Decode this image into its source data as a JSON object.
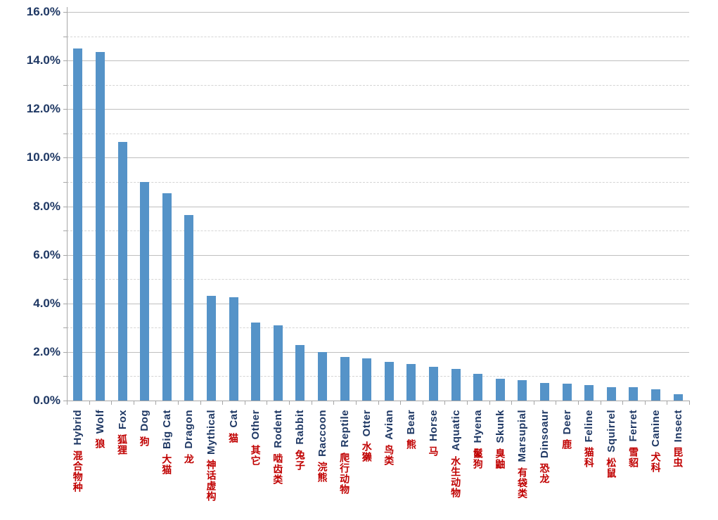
{
  "chart_data": {
    "type": "bar",
    "title": "",
    "xlabel": "",
    "ylabel": "",
    "ylim": [
      0,
      16
    ],
    "ytick_major_step": 2,
    "ytick_minor_step": 1,
    "ytick_labels": [
      "0.0%",
      "2.0%",
      "4.0%",
      "6.0%",
      "8.0%",
      "10.0%",
      "12.0%",
      "14.0%",
      "16.0%"
    ],
    "grid": true,
    "legend_position": "none",
    "categories": [
      {
        "en": "Hybrid",
        "zh": "混合物种"
      },
      {
        "en": "Wolf",
        "zh": "狼"
      },
      {
        "en": "Fox",
        "zh": "狐狸"
      },
      {
        "en": "Dog",
        "zh": "狗"
      },
      {
        "en": "Big Cat",
        "zh": "大猫"
      },
      {
        "en": "Dragon",
        "zh": "龙"
      },
      {
        "en": "Mythical",
        "zh": "神话虚构"
      },
      {
        "en": "Cat",
        "zh": "猫"
      },
      {
        "en": "Other",
        "zh": "其它"
      },
      {
        "en": "Rodent",
        "zh": "啮齿类"
      },
      {
        "en": "Rabbit",
        "zh": "兔子"
      },
      {
        "en": "Raccoon",
        "zh": "浣熊"
      },
      {
        "en": "Reptile",
        "zh": "爬行动物"
      },
      {
        "en": "Otter",
        "zh": "水獭"
      },
      {
        "en": "Avian",
        "zh": "鸟类"
      },
      {
        "en": "Bear",
        "zh": "熊"
      },
      {
        "en": "Horse",
        "zh": "马"
      },
      {
        "en": "Aquatic",
        "zh": "水生动物"
      },
      {
        "en": "Hyena",
        "zh": "鬣狗"
      },
      {
        "en": "Skunk",
        "zh": "臭鼬"
      },
      {
        "en": "Marsupial",
        "zh": "有袋类"
      },
      {
        "en": "Dinsoaur",
        "zh": "恐龙"
      },
      {
        "en": "Deer",
        "zh": "鹿"
      },
      {
        "en": "Feline",
        "zh": "猫科"
      },
      {
        "en": "Squirrel",
        "zh": "松鼠"
      },
      {
        "en": "Ferret",
        "zh": "雪貂"
      },
      {
        "en": "Canine",
        "zh": "犬科"
      },
      {
        "en": "Insect",
        "zh": "昆虫"
      }
    ],
    "values": [
      14.5,
      14.35,
      10.65,
      9.0,
      8.55,
      7.65,
      4.3,
      4.25,
      3.2,
      3.1,
      2.3,
      2.0,
      1.8,
      1.75,
      1.6,
      1.5,
      1.4,
      1.3,
      1.1,
      0.9,
      0.85,
      0.72,
      0.7,
      0.65,
      0.55,
      0.55,
      0.45,
      0.25
    ],
    "colors": {
      "bar": "#5593c8",
      "label_en": "#1f3864",
      "label_zh": "#c00000",
      "ytick_label": "#1f3864",
      "axis_line": "#a6a6a6",
      "gridline_major": "#bfbfbf",
      "gridline_minor": "#d4d4d4",
      "background": "#ffffff"
    }
  }
}
